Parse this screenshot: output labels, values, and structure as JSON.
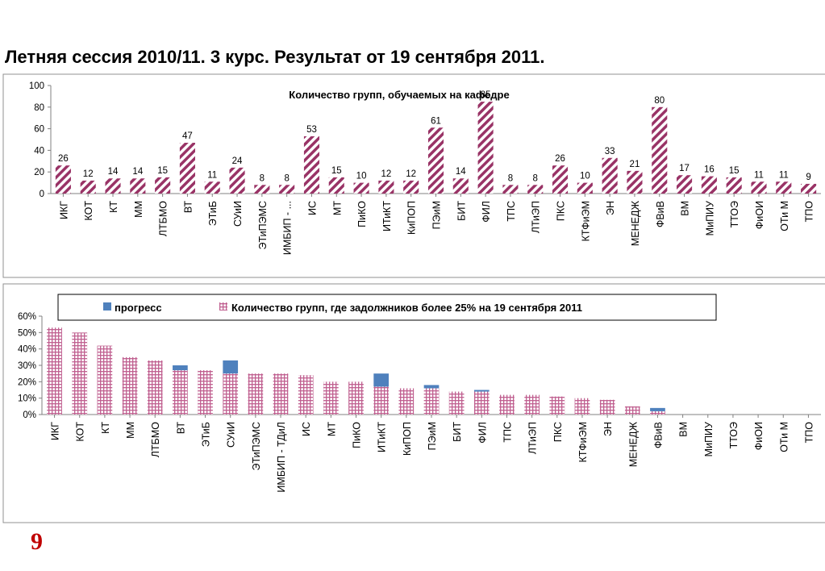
{
  "title": "Летняя сессия 2010/11.   3 курс.  Результат от 19 сентября 2011.",
  "slide_number": "9",
  "colors": {
    "bar": "#993366",
    "progress": "#4f81bd",
    "debt_grid": "#c06090",
    "slide_number": "#c00000"
  },
  "chart_data": [
    {
      "type": "bar",
      "title": "Количество групп, обучаемых на кафедре",
      "categories": [
        "ИКГ",
        "КОТ",
        "КТ",
        "ММ",
        "ЛТБМО",
        "ВТ",
        "ЭТиБ",
        "СУиИ",
        "ЭТиПЭМС",
        "ИМБИП - ...",
        "ИС",
        "МТ",
        "ПиКО",
        "ИТиКТ",
        "КиПОП",
        "ПЭиМ",
        "БИТ",
        "ФИЛ",
        "ТПС",
        "ЛТиЭП",
        "ПКС",
        "КТФиЭМ",
        "ЭН",
        "МЕНЕДЖ",
        "ФВиВ",
        "ВМ",
        "МиПИУ",
        "ТТОЭ",
        "ФиОИ",
        "ОТи М",
        "ТПО"
      ],
      "values": [
        26,
        12,
        14,
        14,
        15,
        47,
        11,
        24,
        8,
        8,
        53,
        15,
        10,
        12,
        12,
        61,
        14,
        85,
        8,
        8,
        26,
        10,
        33,
        21,
        80,
        17,
        16,
        15,
        11,
        11,
        9
      ],
      "value_labels": [
        "26",
        "12",
        "14",
        "14",
        "15",
        "47",
        "11",
        "24",
        "8",
        "8",
        "53",
        "15",
        "10",
        "12",
        "12",
        "61",
        "14",
        "85",
        "8",
        "8",
        "26",
        "10",
        "33",
        "21",
        "80",
        "17",
        "16",
        "15",
        "11",
        "11",
        "9"
      ],
      "ylim": [
        0,
        100
      ],
      "yticks": [
        "0",
        "20",
        "40",
        "60",
        "80",
        "100"
      ],
      "pattern": "diagonal-hatch"
    },
    {
      "type": "bar",
      "stacked": true,
      "categories": [
        "ИКГ",
        "КОТ",
        "КТ",
        "ММ",
        "ЛТБМО",
        "ВТ",
        "ЭТиБ",
        "СУиИ",
        "ЭТиПЭМС",
        "ИМБИП - ТДиЛ",
        "ИС",
        "МТ",
        "ПиКО",
        "ИТиКТ",
        "КиПОП",
        "ПЭиМ",
        "БИТ",
        "ФИЛ",
        "ТПС",
        "ЛТиЭП",
        "ПКС",
        "КТФиЭМ",
        "ЭН",
        "МЕНЕДЖ",
        "ФВиВ",
        "ВМ",
        "МиПИУ",
        "ТТОЭ",
        "ФиОИ",
        "ОТи М",
        "ТПО"
      ],
      "series": [
        {
          "name": "Количество групп, где задолжников более  25% на 19 сентября 2011",
          "values": [
            53,
            50,
            42,
            35,
            33,
            27,
            27,
            25,
            25,
            25,
            24,
            20,
            20,
            17,
            16,
            16,
            14,
            14,
            12,
            12,
            11,
            10,
            9,
            5,
            2,
            0,
            0,
            0,
            0,
            0,
            0
          ],
          "color": "#c06090"
        },
        {
          "name": "прогресс",
          "values": [
            0,
            0,
            0,
            0,
            0,
            3,
            0,
            8,
            0,
            0,
            0,
            0,
            0,
            8,
            0,
            2,
            0,
            1,
            0,
            0,
            0,
            0,
            0,
            0,
            2,
            0,
            0,
            0,
            0,
            0,
            0
          ],
          "color": "#4f81bd"
        }
      ],
      "ylim": [
        0,
        60
      ],
      "yticks": [
        "0%",
        "10%",
        "20%",
        "30%",
        "40%",
        "50%",
        "60%"
      ],
      "legend": "top"
    }
  ]
}
